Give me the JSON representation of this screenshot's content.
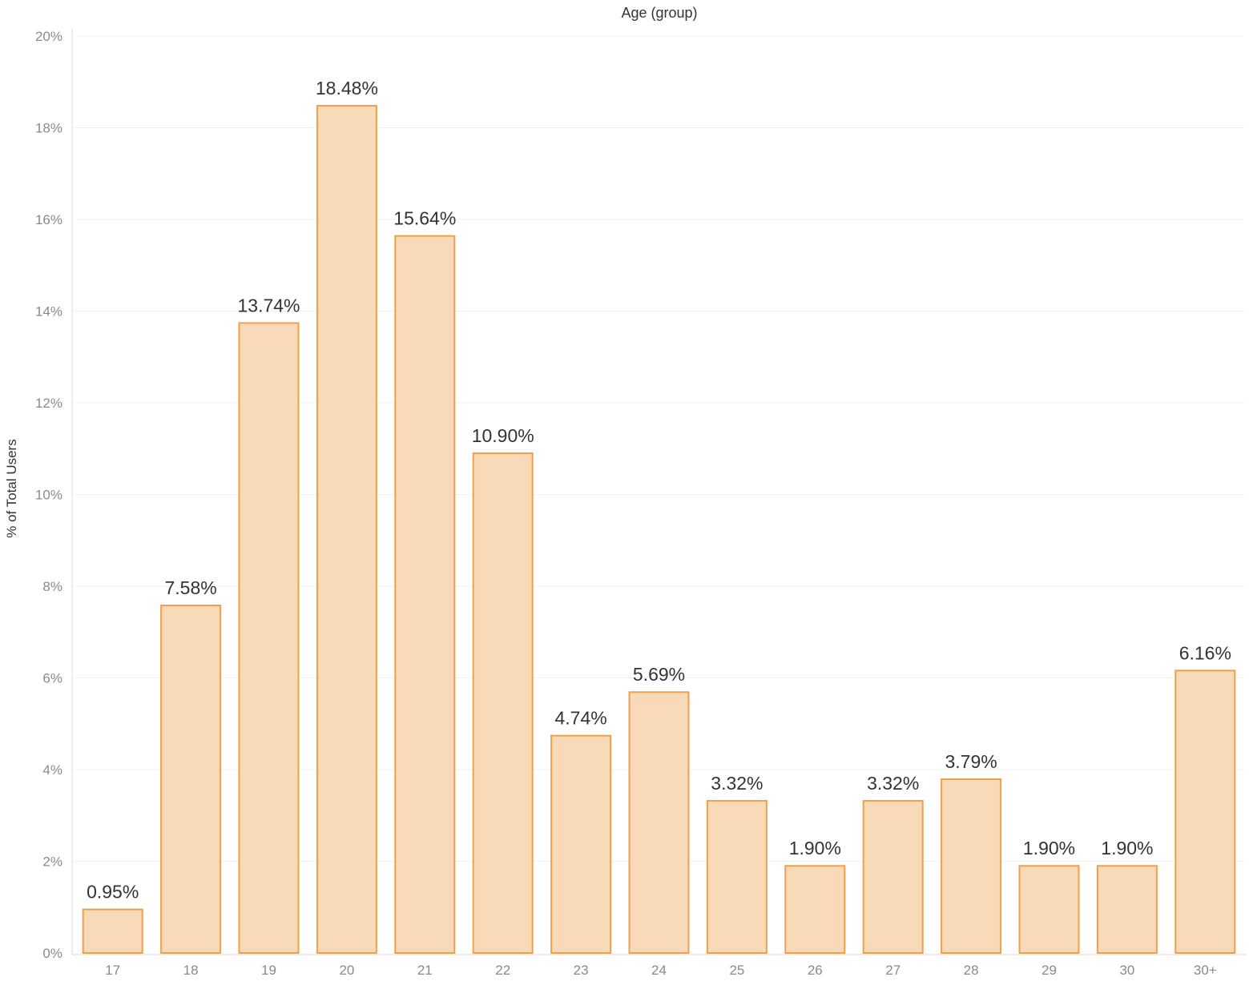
{
  "chart_data": {
    "type": "bar",
    "title": "Age (group)",
    "xlabel": "",
    "ylabel": "% of Total Users",
    "categories": [
      "17",
      "18",
      "19",
      "20",
      "21",
      "22",
      "23",
      "24",
      "25",
      "26",
      "27",
      "28",
      "29",
      "30",
      "30+"
    ],
    "values": [
      0.95,
      7.58,
      13.74,
      18.48,
      15.64,
      10.9,
      4.74,
      5.69,
      3.32,
      1.9,
      3.32,
      3.79,
      1.9,
      1.9,
      6.16
    ],
    "data_labels": [
      "0.95%",
      "7.58%",
      "13.74%",
      "18.48%",
      "15.64%",
      "10.90%",
      "4.74%",
      "5.69%",
      "3.32%",
      "1.90%",
      "3.32%",
      "3.79%",
      "1.90%",
      "1.90%",
      "6.16%"
    ],
    "ylim": [
      0,
      20
    ],
    "yticks": [
      0,
      2,
      4,
      6,
      8,
      10,
      12,
      14,
      16,
      18,
      20
    ],
    "ytick_labels": [
      "0%",
      "2%",
      "4%",
      "6%",
      "8%",
      "10%",
      "12%",
      "14%",
      "16%",
      "18%",
      "20%"
    ],
    "grid": true,
    "legend": "none",
    "colors": {
      "bar_fill": "#f8d9b8",
      "bar_stroke": "#f0a04b"
    }
  }
}
